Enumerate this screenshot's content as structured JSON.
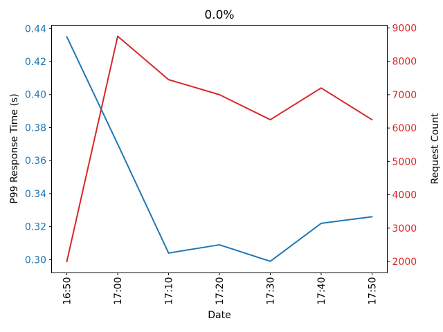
{
  "chart_data": {
    "type": "line",
    "title": "0.0%",
    "xlabel": "Date",
    "grid": false,
    "legend_position": "none",
    "background_color": "#ffffff",
    "spine_color": "#000000",
    "x_tick_rotation": 90,
    "categories": [
      "16:50",
      "17:00",
      "17:10",
      "17:20",
      "17:30",
      "17:40",
      "17:50"
    ],
    "series": [
      {
        "name": "P99 Response Time (s)",
        "axis": "left",
        "color": "#1f77b4",
        "values": [
          0.435,
          0.37,
          0.304,
          0.309,
          0.299,
          0.322,
          0.326
        ]
      },
      {
        "name": "Request Count",
        "axis": "right",
        "color": "#d62728",
        "values": [
          2000,
          8750,
          7450,
          7000,
          6250,
          7200,
          6250
        ]
      }
    ],
    "left_axis": {
      "label": "P99 Response Time (s)",
      "color": "#1f77b4",
      "ylim": [
        0.292,
        0.442
      ],
      "ticks": [
        0.3,
        0.32,
        0.34,
        0.36,
        0.38,
        0.4,
        0.42,
        0.44
      ],
      "tick_labels": [
        "0.30",
        "0.32",
        "0.34",
        "0.36",
        "0.38",
        "0.40",
        "0.42",
        "0.44"
      ]
    },
    "right_axis": {
      "label": "Request Count",
      "color": "#d62728",
      "ylim": [
        1660,
        9080
      ],
      "ticks": [
        2000,
        3000,
        4000,
        5000,
        6000,
        7000,
        8000,
        9000
      ],
      "tick_labels": [
        "2000",
        "3000",
        "4000",
        "5000",
        "6000",
        "7000",
        "8000",
        "9000"
      ]
    }
  }
}
